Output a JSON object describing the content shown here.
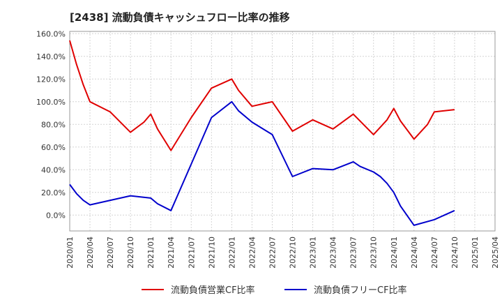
{
  "chart_data": {
    "type": "line",
    "title": "[2438]  流動負債キャッシュフロー比率の推移",
    "xlabel": "",
    "ylabel": "",
    "ylim": [
      -14,
      162
    ],
    "grid": true,
    "legend_position": "bottom",
    "x_ticks": [
      "2020/01",
      "2020/04",
      "2020/07",
      "2020/10",
      "2021/01",
      "2021/04",
      "2021/07",
      "2021/10",
      "2022/01",
      "2022/04",
      "2022/07",
      "2022/10",
      "2023/01",
      "2023/04",
      "2023/07",
      "2023/10",
      "2024/01",
      "2024/04",
      "2024/07",
      "2024/10",
      "2025/01",
      "2025/04"
    ],
    "y_ticks": [
      0,
      20,
      40,
      60,
      80,
      100,
      120,
      140,
      160
    ],
    "y_tick_labels": [
      "0.0%",
      "20.0%",
      "40.0%",
      "60.0%",
      "80.0%",
      "100.0%",
      "120.0%",
      "140.0%",
      "160.0%"
    ],
    "series": [
      {
        "name": "流動負債営業CF比率",
        "color": "#e00000",
        "points": [
          [
            "2020/01",
            154
          ],
          [
            "2020/02",
            133
          ],
          [
            "2020/03",
            115
          ],
          [
            "2020/04",
            100
          ],
          [
            "2020/07",
            91
          ],
          [
            "2020/10",
            73
          ],
          [
            "2020/12",
            82
          ],
          [
            "2021/01",
            89
          ],
          [
            "2021/02",
            76
          ],
          [
            "2021/04",
            57
          ],
          [
            "2021/07",
            86
          ],
          [
            "2021/10",
            112
          ],
          [
            "2022/01",
            120
          ],
          [
            "2022/02",
            110
          ],
          [
            "2022/04",
            96
          ],
          [
            "2022/07",
            100
          ],
          [
            "2022/10",
            74
          ],
          [
            "2023/01",
            84
          ],
          [
            "2023/04",
            76
          ],
          [
            "2023/07",
            89
          ],
          [
            "2023/10",
            71
          ],
          [
            "2023/12",
            84
          ],
          [
            "2024/01",
            94
          ],
          [
            "2024/02",
            83
          ],
          [
            "2024/04",
            67
          ],
          [
            "2024/06",
            80
          ],
          [
            "2024/07",
            91
          ],
          [
            "2024/10",
            93
          ]
        ]
      },
      {
        "name": "流動負債フリーCF比率",
        "color": "#0000cc",
        "points": [
          [
            "2020/01",
            27
          ],
          [
            "2020/02",
            19
          ],
          [
            "2020/03",
            13
          ],
          [
            "2020/04",
            9
          ],
          [
            "2020/07",
            13
          ],
          [
            "2020/10",
            17
          ],
          [
            "2021/01",
            15
          ],
          [
            "2021/02",
            10
          ],
          [
            "2021/04",
            4
          ],
          [
            "2021/07",
            45
          ],
          [
            "2021/10",
            86
          ],
          [
            "2022/01",
            100
          ],
          [
            "2022/02",
            92
          ],
          [
            "2022/04",
            82
          ],
          [
            "2022/07",
            71
          ],
          [
            "2022/10",
            34
          ],
          [
            "2023/01",
            41
          ],
          [
            "2023/04",
            40
          ],
          [
            "2023/07",
            47
          ],
          [
            "2023/08",
            43
          ],
          [
            "2023/10",
            38
          ],
          [
            "2023/11",
            34
          ],
          [
            "2023/12",
            28
          ],
          [
            "2024/01",
            20
          ],
          [
            "2024/02",
            8
          ],
          [
            "2024/04",
            -9
          ],
          [
            "2024/07",
            -4
          ],
          [
            "2024/10",
            4
          ]
        ]
      }
    ]
  }
}
